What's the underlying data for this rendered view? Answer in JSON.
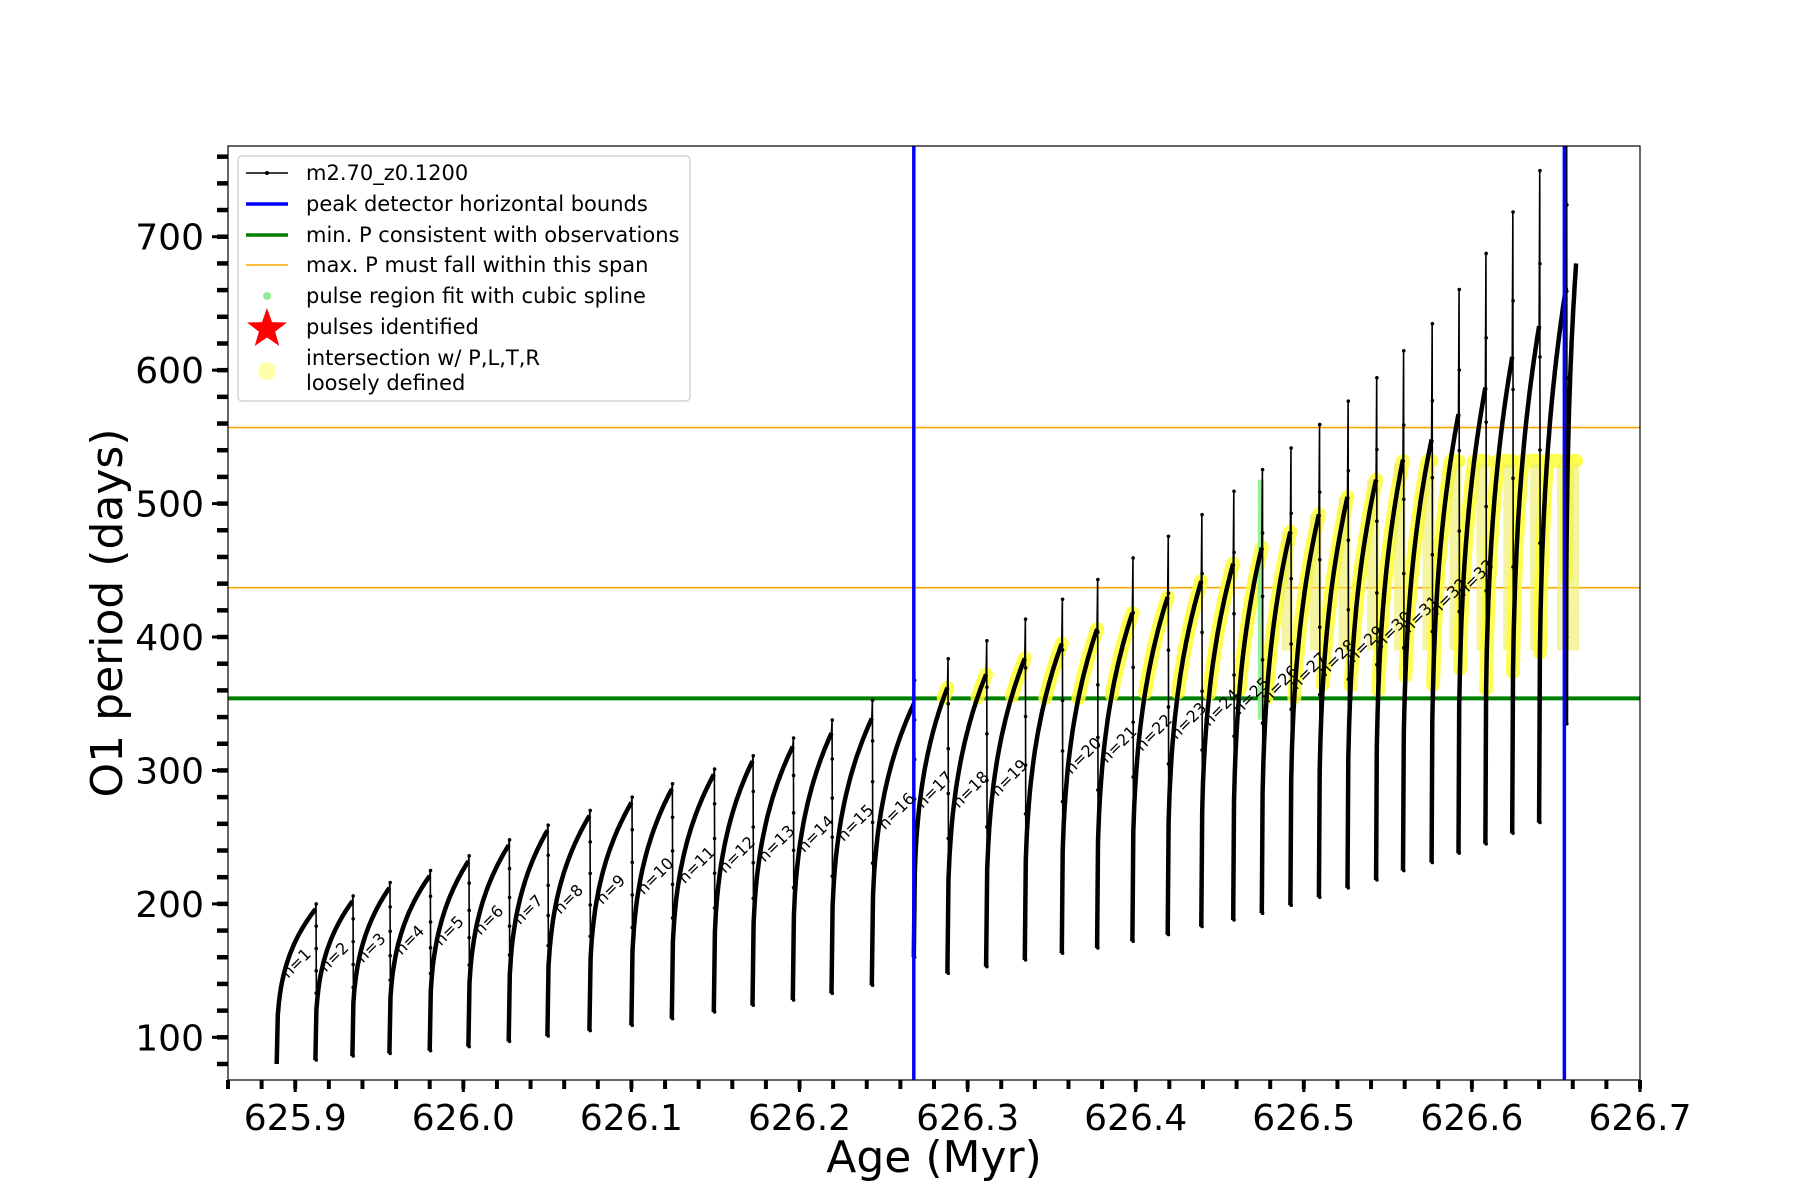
{
  "chart_data": {
    "type": "line",
    "xlabel": "Age (Myr)",
    "ylabel": "O1 period (days)",
    "xlim": [
      625.86,
      626.7
    ],
    "ylim": [
      68,
      768
    ],
    "x_ticks": [
      625.9,
      626.0,
      626.1,
      626.2,
      626.3,
      626.4,
      626.5,
      626.6,
      626.7
    ],
    "x_tick_labels": [
      "625.9",
      "626.0",
      "626.1",
      "626.2",
      "626.3",
      "626.4",
      "626.5",
      "626.6",
      "626.7"
    ],
    "y_ticks": [
      100,
      200,
      300,
      400,
      500,
      600,
      700
    ],
    "y_tick_labels": [
      "100",
      "200",
      "300",
      "400",
      "500",
      "600",
      "700"
    ],
    "legend": {
      "placement": "upper-left",
      "entries": [
        {
          "label": "m2.70_z0.1200",
          "style": "line-marker",
          "color": "#000000"
        },
        {
          "label": "peak detector horizontal bounds",
          "style": "line",
          "color": "#0000ff"
        },
        {
          "label": "min. P consistent with observations",
          "style": "line",
          "color": "#008000"
        },
        {
          "label": "max. P must fall within this span",
          "style": "thin-line",
          "color": "#ffa500"
        },
        {
          "label": "pulse region fit with cubic spline",
          "style": "dot",
          "color": "#90ee90"
        },
        {
          "label": "pulses identified",
          "style": "star",
          "color": "#ff0000"
        },
        {
          "label": "intersection w/ P,L,T,R",
          "label2": "loosely defined",
          "style": "big-dot",
          "color": "#ffffaa"
        }
      ]
    },
    "vlines": [
      {
        "x": 626.268,
        "color": "#0000ff"
      },
      {
        "x": 626.655,
        "color": "#0000ff"
      }
    ],
    "hlines": [
      {
        "y": 354,
        "color": "#008000",
        "kind": "thick"
      },
      {
        "y": 437,
        "color": "#ffa500",
        "kind": "thin"
      },
      {
        "y": 557,
        "color": "#ffa500",
        "kind": "thin"
      }
    ],
    "series": [
      {
        "name": "m2.70_z0.1200",
        "color": "#000000",
        "pulses": [
          {
            "x": 625.889,
            "end": 625.912,
            "min": 80,
            "peak": 196,
            "label": "n=1"
          },
          {
            "x": 625.912,
            "end": 625.934,
            "min": 83,
            "peak": 202,
            "label": "n=2"
          },
          {
            "x": 625.934,
            "end": 625.956,
            "min": 86,
            "peak": 212,
            "label": "n=3"
          },
          {
            "x": 625.956,
            "end": 625.98,
            "min": 88,
            "peak": 221,
            "label": "n=4"
          },
          {
            "x": 625.98,
            "end": 626.003,
            "min": 90,
            "peak": 232,
            "label": "n=5"
          },
          {
            "x": 626.003,
            "end": 626.027,
            "min": 93,
            "peak": 244,
            "label": "n=6"
          },
          {
            "x": 626.027,
            "end": 626.05,
            "min": 97,
            "peak": 255,
            "label": "n=7"
          },
          {
            "x": 626.05,
            "end": 626.075,
            "min": 101,
            "peak": 266,
            "label": "n=8"
          },
          {
            "x": 626.075,
            "end": 626.1,
            "min": 105,
            "peak": 276,
            "label": "n=9"
          },
          {
            "x": 626.1,
            "end": 626.124,
            "min": 109,
            "peak": 286,
            "label": "n=10"
          },
          {
            "x": 626.124,
            "end": 626.149,
            "min": 114,
            "peak": 297,
            "label": "n=11"
          },
          {
            "x": 626.149,
            "end": 626.172,
            "min": 119,
            "peak": 307,
            "label": "n=12"
          },
          {
            "x": 626.172,
            "end": 626.196,
            "min": 124,
            "peak": 318,
            "label": "n=13"
          },
          {
            "x": 626.196,
            "end": 626.219,
            "min": 128,
            "peak": 328,
            "label": "n=14"
          },
          {
            "x": 626.219,
            "end": 626.243,
            "min": 133,
            "peak": 339,
            "label": "n=15"
          },
          {
            "x": 626.243,
            "end": 626.268,
            "min": 139,
            "peak": 350,
            "label": "n=16"
          },
          {
            "x": 626.268,
            "end": 626.288,
            "min": 160,
            "peak": 362,
            "label": "n=17"
          },
          {
            "x": 626.288,
            "end": 626.311,
            "min": 148,
            "peak": 372,
            "label": "n=18"
          },
          {
            "x": 626.311,
            "end": 626.334,
            "min": 153,
            "peak": 384,
            "label": "n=19"
          },
          {
            "x": 626.334,
            "end": 626.356,
            "min": 158,
            "peak": 395,
            "label": ""
          },
          {
            "x": 626.356,
            "end": 626.377,
            "min": 163,
            "peak": 406,
            "label": "n=20"
          },
          {
            "x": 626.377,
            "end": 626.398,
            "min": 167,
            "peak": 418,
            "label": "n=21"
          },
          {
            "x": 626.398,
            "end": 626.419,
            "min": 172,
            "peak": 430,
            "label": "n=22"
          },
          {
            "x": 626.419,
            "end": 626.439,
            "min": 177,
            "peak": 442,
            "label": "n=23"
          },
          {
            "x": 626.439,
            "end": 626.458,
            "min": 183,
            "peak": 455,
            "label": "n=24"
          },
          {
            "x": 626.458,
            "end": 626.475,
            "min": 188,
            "peak": 467,
            "label": "n=25"
          },
          {
            "x": 626.475,
            "end": 626.492,
            "min": 193,
            "peak": 479,
            "label": "n=26"
          },
          {
            "x": 626.492,
            "end": 626.509,
            "min": 199,
            "peak": 492,
            "label": "n=27"
          },
          {
            "x": 626.509,
            "end": 626.526,
            "min": 205,
            "peak": 505,
            "label": "n=28"
          },
          {
            "x": 626.526,
            "end": 626.543,
            "min": 212,
            "peak": 518,
            "label": "n=29"
          },
          {
            "x": 626.543,
            "end": 626.559,
            "min": 218,
            "peak": 533,
            "label": "n=30"
          },
          {
            "x": 626.559,
            "end": 626.576,
            "min": 225,
            "peak": 548,
            "label": "n=31"
          },
          {
            "x": 626.576,
            "end": 626.592,
            "min": 231,
            "peak": 567,
            "label": "n=32"
          },
          {
            "x": 626.592,
            "end": 626.608,
            "min": 238,
            "peak": 587,
            "label": "n=33"
          },
          {
            "x": 626.608,
            "end": 626.624,
            "min": 245,
            "peak": 610,
            "label": ""
          },
          {
            "x": 626.624,
            "end": 626.64,
            "min": 253,
            "peak": 633,
            "label": ""
          },
          {
            "x": 626.64,
            "end": 626.656,
            "min": 261,
            "peak": 662,
            "label": ""
          },
          {
            "x": 626.656,
            "end": 626.662,
            "min": 335,
            "peak": 680,
            "label": ""
          }
        ]
      }
    ]
  }
}
